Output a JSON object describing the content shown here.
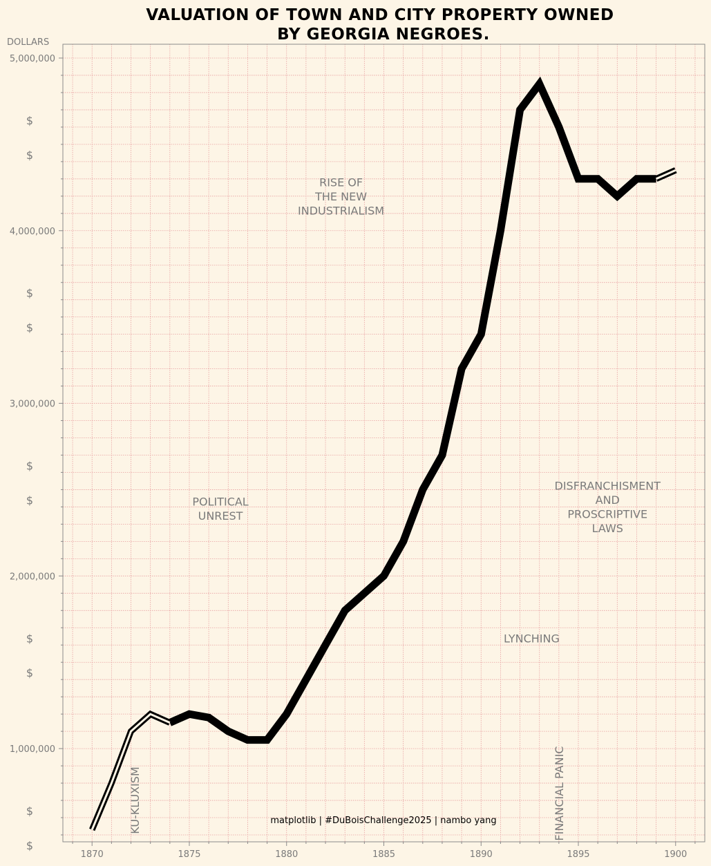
{
  "chart_data": {
    "type": "line",
    "title": [
      "VALUATION OF TOWN AND CITY PROPERTY OWNED",
      "BY GEORGIA NEGROES."
    ],
    "ylabel": "DOLLARS",
    "xlim": [
      1868.5,
      1901.5
    ],
    "ylim": [
      460000,
      5080000
    ],
    "x_ticks": [
      1870,
      1875,
      1880,
      1885,
      1890,
      1895,
      1900
    ],
    "x_tick_labels": [
      "1870",
      "1875",
      "1880",
      "1885",
      "1890",
      "1895",
      "1900"
    ],
    "y_ticks": [
      1000000,
      2000000,
      3000000,
      4000000,
      5000000
    ],
    "y_tick_labels": [
      "1,000,000",
      "2,000,000",
      "3,000,000",
      "4,000,000",
      "5,000,000"
    ],
    "dollar_marks": [
      {
        "y": 4640000,
        "text": "$"
      },
      {
        "y": 4440000,
        "text": "$"
      },
      {
        "y": 3640000,
        "text": "$"
      },
      {
        "y": 3440000,
        "text": "$"
      },
      {
        "y": 2640000,
        "text": "$"
      },
      {
        "y": 2440000,
        "text": "$"
      },
      {
        "y": 1640000,
        "text": "$"
      },
      {
        "y": 1440000,
        "text": "$"
      },
      {
        "y": 640000,
        "text": "$"
      },
      {
        "y": 440000,
        "text": "$"
      }
    ],
    "grid": true,
    "grid_color": "#e8a0a0",
    "line_color": "#000000",
    "background": "#fdf5e6",
    "series": [
      {
        "x": [
          1870,
          1871,
          1872,
          1873,
          1874,
          1875,
          1876,
          1877,
          1878,
          1879,
          1880,
          1881,
          1882,
          1883,
          1884,
          1885,
          1886,
          1887,
          1888,
          1889,
          1890,
          1891,
          1892,
          1893,
          1894,
          1895,
          1896,
          1897,
          1898,
          1899,
          1900
        ],
        "values": [
          530000,
          800000,
          1100000,
          1200000,
          1150000,
          1200000,
          1180000,
          1100000,
          1050000,
          1050000,
          1200000,
          1400000,
          1600000,
          1800000,
          1900000,
          2000000,
          2200000,
          2500000,
          2700000,
          3200000,
          3400000,
          4000000,
          4700000,
          4850000,
          4600000,
          4300000,
          4300000,
          4200000,
          4300000,
          4300000,
          4350000
        ],
        "outlined_segments": [
          [
            1870,
            1874
          ],
          [
            1899,
            1900
          ]
        ]
      }
    ],
    "annotations": [
      {
        "lines": [
          "RISE OF",
          "THE NEW",
          "INDUSTRIALISM"
        ],
        "x": 1882.8,
        "y": 4200000,
        "rotate": 0
      },
      {
        "lines": [
          "POLITICAL",
          "UNREST"
        ],
        "x": 1876.6,
        "y": 2390000,
        "rotate": 0
      },
      {
        "lines": [
          "DISFRANCHISMENT",
          "AND",
          "PROSCRIPTIVE",
          "LAWS"
        ],
        "x": 1896.5,
        "y": 2400000,
        "rotate": 0
      },
      {
        "lines": [
          "LYNCHING"
        ],
        "x": 1892.6,
        "y": 1640000,
        "rotate": 0
      },
      {
        "lines": [
          "KU-KLUXISM"
        ],
        "x": 1872.2,
        "y": 700000,
        "rotate": -90
      },
      {
        "lines": [
          "FINANCIAL PANIC"
        ],
        "x": 1894.0,
        "y": 740000,
        "rotate": -90
      }
    ],
    "credit": "matplotlib | #DuBoisChallenge2025 | nambo yang"
  }
}
